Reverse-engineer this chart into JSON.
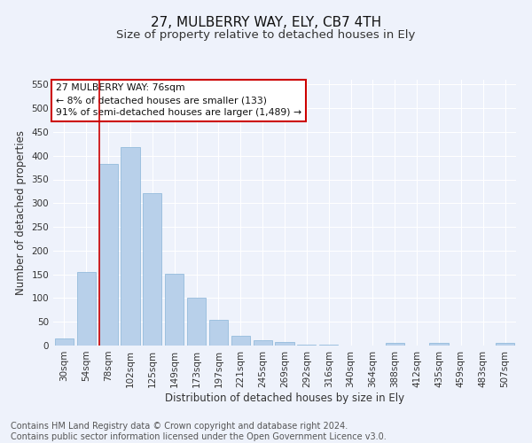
{
  "title": "27, MULBERRY WAY, ELY, CB7 4TH",
  "subtitle": "Size of property relative to detached houses in Ely",
  "xlabel": "Distribution of detached houses by size in Ely",
  "ylabel": "Number of detached properties",
  "categories": [
    "30sqm",
    "54sqm",
    "78sqm",
    "102sqm",
    "125sqm",
    "149sqm",
    "173sqm",
    "197sqm",
    "221sqm",
    "245sqm",
    "269sqm",
    "292sqm",
    "316sqm",
    "340sqm",
    "364sqm",
    "388sqm",
    "412sqm",
    "435sqm",
    "459sqm",
    "483sqm",
    "507sqm"
  ],
  "values": [
    15,
    155,
    383,
    418,
    322,
    152,
    100,
    55,
    20,
    12,
    7,
    2,
    1,
    0,
    0,
    5,
    0,
    5,
    0,
    0,
    5
  ],
  "bar_color": "#b8d0ea",
  "bar_edge_color": "#88b4d8",
  "vline_x_index": 2,
  "vline_color": "#cc0000",
  "annotation_text": "27 MULBERRY WAY: 76sqm\n← 8% of detached houses are smaller (133)\n91% of semi-detached houses are larger (1,489) →",
  "annotation_box_color": "#ffffff",
  "annotation_box_edge_color": "#cc0000",
  "ylim": [
    0,
    560
  ],
  "yticks": [
    0,
    50,
    100,
    150,
    200,
    250,
    300,
    350,
    400,
    450,
    500,
    550
  ],
  "footnote": "Contains HM Land Registry data © Crown copyright and database right 2024.\nContains public sector information licensed under the Open Government Licence v3.0.",
  "bg_color": "#eef2fb",
  "grid_color": "#ffffff",
  "title_fontsize": 11,
  "subtitle_fontsize": 9.5,
  "axis_fontsize": 8.5,
  "tick_fontsize": 7.5,
  "footnote_fontsize": 7,
  "annotation_fontsize": 7.8
}
